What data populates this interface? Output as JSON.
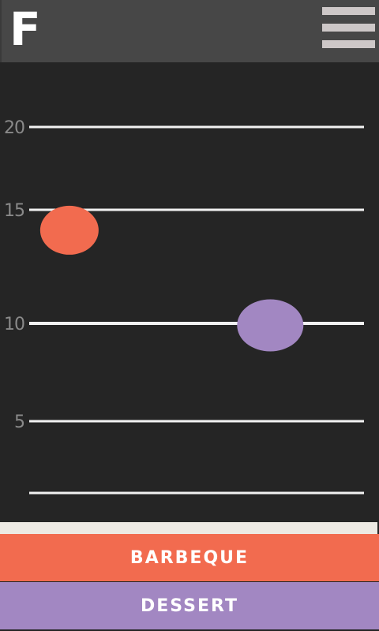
{
  "header": {
    "logo_text": "F",
    "menu_icon": "hamburger-menu-icon"
  },
  "chart_data": {
    "type": "scatter",
    "title": "",
    "xlabel": "",
    "ylabel": "",
    "y_ticks": [
      "20",
      "15",
      "10",
      "5"
    ],
    "ylim": [
      1.5,
      20
    ],
    "grid": true,
    "series": [
      {
        "name": "BARBEQUE",
        "color": "#f26b4f",
        "points": [
          {
            "x": 0.12,
            "y": 14.1
          }
        ]
      },
      {
        "name": "DESSERT",
        "color": "#a287c2",
        "points": [
          {
            "x": 0.72,
            "y": 9.9
          }
        ]
      }
    ]
  },
  "buttons": {
    "barbeque": "BARBEQUE",
    "dessert": "DESSERT"
  },
  "colors": {
    "barbeque": "#f26b4f",
    "dessert": "#a287c2",
    "background": "#252525",
    "header": "#474747"
  }
}
